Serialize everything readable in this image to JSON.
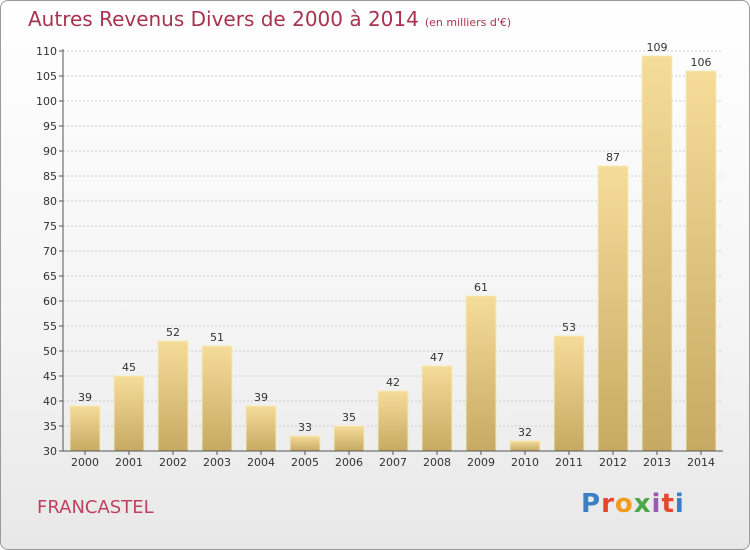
{
  "title": "Autres Revenus Divers de 2000 à 2014",
  "unit": "(en milliers d'€)",
  "place": "FRANCASTEL",
  "brand": "Proxiti",
  "chart_data": {
    "type": "bar",
    "categories": [
      "2000",
      "2001",
      "2002",
      "2003",
      "2004",
      "2005",
      "2006",
      "2007",
      "2008",
      "2009",
      "2010",
      "2011",
      "2012",
      "2013",
      "2014"
    ],
    "values": [
      39,
      45,
      52,
      51,
      39,
      33,
      35,
      42,
      47,
      61,
      32,
      53,
      87,
      109,
      106
    ],
    "ylim": [
      30,
      110
    ],
    "yticks": [
      30,
      35,
      40,
      45,
      50,
      55,
      60,
      65,
      70,
      75,
      80,
      85,
      90,
      95,
      100,
      105,
      110
    ],
    "grid": true,
    "colors": {
      "bar_light": "#f5dc98",
      "bar_dark": "#c6aa64",
      "grid": "#cccccc"
    }
  }
}
